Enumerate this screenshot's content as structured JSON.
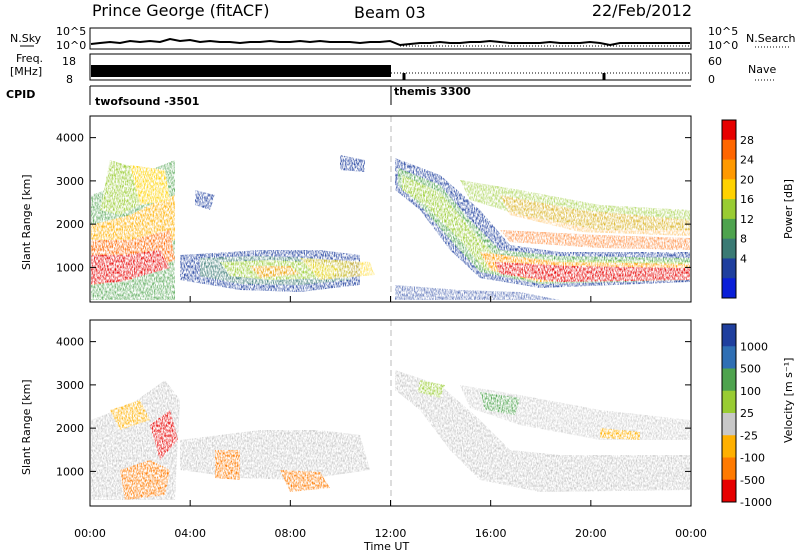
{
  "header": {
    "station": "Prince George (fitACF)",
    "beam": "Beam 03",
    "date": "22/Feb/2012"
  },
  "noise_panel": {
    "left_label": "N.Sky",
    "right_label": "N.Search",
    "left_ticks": [
      "10^5",
      "10^0"
    ],
    "right_ticks": [
      "10^5",
      "10^0"
    ]
  },
  "freq_panel": {
    "left_label_1": "Freq.",
    "left_label_2": "[MHz]",
    "left_ticks": [
      "18",
      "8"
    ],
    "right_label": "Nave",
    "right_ticks": [
      "60",
      "0"
    ]
  },
  "cpid_panel": {
    "label": "CPID",
    "programs": [
      "twofsound -3501",
      "themis 3300"
    ]
  },
  "chart_data": [
    {
      "type": "heatmap",
      "name": "power",
      "ylabel": "Slant Range [km]",
      "yticks": [
        "4000",
        "3000",
        "2000",
        "1000"
      ],
      "colorbar_label": "Power [dB]",
      "colorbar_ticks": [
        "28",
        "24",
        "20",
        "16",
        "12",
        "8",
        "4"
      ],
      "colors": [
        "#e60000",
        "#ff6600",
        "#ff9900",
        "#ffd200",
        "#99cc33",
        "#4ea34e",
        "#3a7a74",
        "#1f3f9e",
        "#0a1fd8"
      ]
    },
    {
      "type": "heatmap",
      "name": "velocity",
      "ylabel": "Slant Range [km]",
      "yticks": [
        "4000",
        "3000",
        "2000",
        "1000"
      ],
      "colorbar_label": "Velocity [m s⁻¹]",
      "colorbar_ticks": [
        "1000",
        "500",
        "100",
        "25",
        "-25",
        "-100",
        "-500",
        "-1000"
      ],
      "colors": [
        "#1f3f9e",
        "#2f6fb4",
        "#4ea34e",
        "#99cc33",
        "#c8c8c8",
        "#ffb000",
        "#ff7a00",
        "#e60000"
      ]
    }
  ],
  "time_axis": {
    "ticks": [
      "00:00",
      "04:00",
      "08:00",
      "12:00",
      "16:00",
      "20:00",
      "00:00"
    ],
    "label": "Time UT"
  }
}
